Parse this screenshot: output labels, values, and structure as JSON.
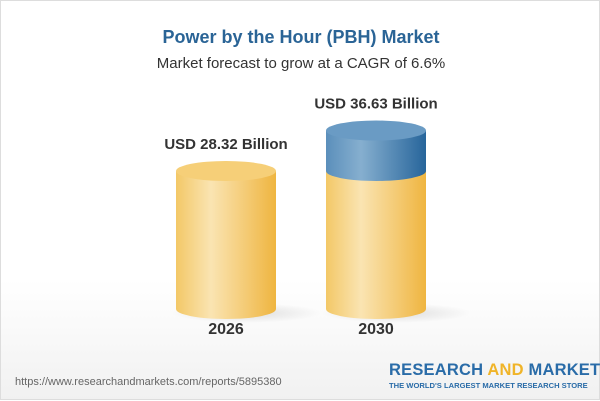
{
  "title": "Power by the Hour (PBH) Market",
  "subtitle": "Market forecast to grow at a CAGR of 6.6%",
  "chart_data": {
    "type": "bar",
    "categories": [
      "2026",
      "2030"
    ],
    "values": [
      28.32,
      36.63
    ],
    "data_labels": [
      "USD 28.32 Billion",
      "USD 36.63 Billion"
    ],
    "unit": "USD Billion",
    "colors": {
      "base": "#f2c45a",
      "growth": "#4a80b0"
    }
  },
  "footer": {
    "url": "https://www.researchandmarkets.com/reports/5895380",
    "logo_part1": "RESEARCH ",
    "logo_part2": "AND",
    "logo_part3": " MARKETS",
    "tagline": "THE WORLD'S LARGEST MARKET RESEARCH STORE"
  }
}
